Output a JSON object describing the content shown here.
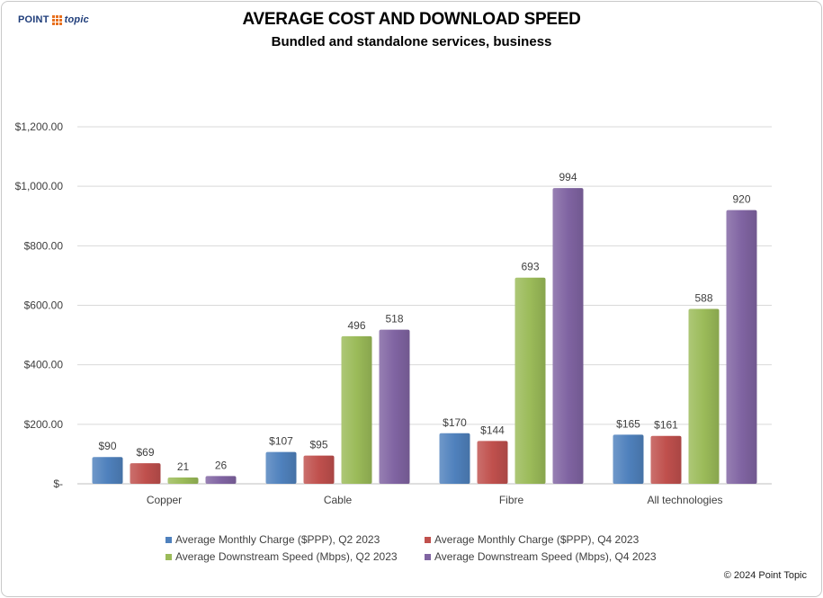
{
  "brand": {
    "logo_left": "POINT",
    "logo_right": "topic"
  },
  "chart_data": {
    "type": "bar",
    "title": "AVERAGE COST AND DOWNLOAD SPEED",
    "subtitle": "Bundled and standalone services, business",
    "categories": [
      "Copper",
      "Cable",
      "Fibre",
      "All technologies"
    ],
    "series": [
      {
        "name": "Average Monthly Charge ($PPP), Q2 2023",
        "values": [
          90,
          107,
          170,
          165
        ],
        "labels": [
          "$90",
          "$107",
          "$170",
          "$165"
        ],
        "color": "#4f81bd"
      },
      {
        "name": "Average Monthly Charge ($PPP), Q4 2023",
        "values": [
          69,
          95,
          144,
          161
        ],
        "labels": [
          "$69",
          "$95",
          "$144",
          "$161"
        ],
        "color": "#c0504d"
      },
      {
        "name": "Average Downstream Speed (Mbps), Q2 2023",
        "values": [
          21,
          496,
          693,
          588
        ],
        "labels": [
          "21",
          "496",
          "693",
          "588"
        ],
        "color": "#9bbb59"
      },
      {
        "name": "Average Downstream Speed (Mbps), Q4 2023",
        "values": [
          26,
          518,
          994,
          920
        ],
        "labels": [
          "26",
          "518",
          "994",
          "920"
        ],
        "color": "#8064a2"
      }
    ],
    "ylim": [
      0,
      1200
    ],
    "yticks": [
      0,
      200,
      400,
      600,
      800,
      1000,
      1200
    ],
    "ytick_labels": [
      "$-",
      "$200.00",
      "$400.00",
      "$600.00",
      "$800.00",
      "$1,000.00",
      "$1,200.00"
    ],
    "grid": true,
    "legend_position": "bottom"
  },
  "footer": {
    "copyright": "© 2024 Point Topic"
  }
}
